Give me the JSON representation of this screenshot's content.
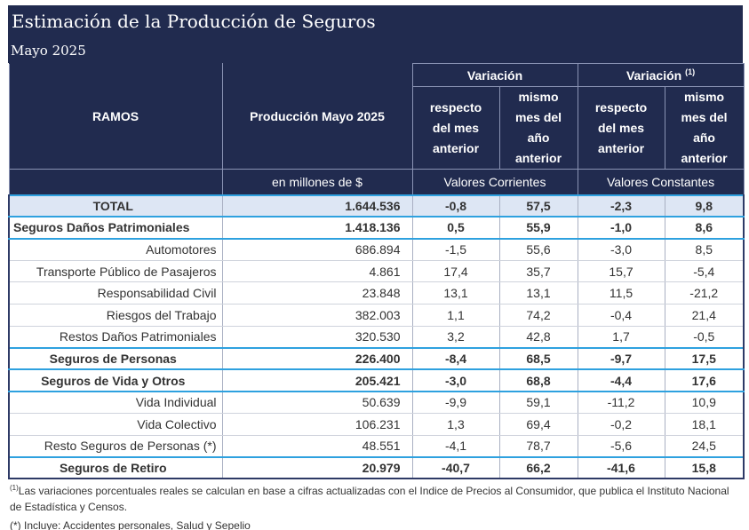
{
  "header": {
    "title": "Estimación de la Producción de Seguros",
    "subtitle": "Mayo 2025"
  },
  "columns": {
    "ramos": "RAMOS",
    "produccion": "Producción Mayo 2025",
    "variacion": "Variación",
    "variacion_real": "Variación",
    "variacion_real_mark": "(1)",
    "respecto": [
      "respecto",
      "del mes",
      "anterior"
    ],
    "mismo": [
      "mismo",
      "mes del",
      "año",
      "anterior"
    ],
    "unidad": "en millones de $",
    "corrientes": "Valores Corrientes",
    "constantes": "Valores Constantes"
  },
  "rows": [
    {
      "name": "TOTAL",
      "type": "total",
      "prod": "1.644.536",
      "r1": "-0,8",
      "r2": "57,5",
      "r3": "-2,3",
      "r4": "9,8"
    },
    {
      "name": "Seguros Daños Patrimoniales",
      "type": "group",
      "prod": "1.418.136",
      "r1": "0,5",
      "r2": "55,9",
      "r3": "-1,0",
      "r4": "8,6"
    },
    {
      "name": "Automotores",
      "type": "sub",
      "prod": "686.894",
      "r1": "-1,5",
      "r2": "55,6",
      "r3": "-3,0",
      "r4": "8,5"
    },
    {
      "name": "Transporte Público de Pasajeros",
      "type": "sub",
      "prod": "4.861",
      "r1": "17,4",
      "r2": "35,7",
      "r3": "15,7",
      "r4": "-5,4"
    },
    {
      "name": "Responsabilidad Civil",
      "type": "sub",
      "prod": "23.848",
      "r1": "13,1",
      "r2": "13,1",
      "r3": "11,5",
      "r4": "-21,2"
    },
    {
      "name": "Riesgos del Trabajo",
      "type": "sub",
      "prod": "382.003",
      "r1": "1,1",
      "r2": "74,2",
      "r3": "-0,4",
      "r4": "21,4"
    },
    {
      "name": "Restos Daños Patrimoniales",
      "type": "sub",
      "prod": "320.530",
      "r1": "3,2",
      "r2": "42,8",
      "r3": "1,7",
      "r4": "-0,5"
    },
    {
      "name": "Seguros de Personas",
      "type": "group",
      "prod": "226.400",
      "r1": "-8,4",
      "r2": "68,5",
      "r3": "-9,7",
      "r4": "17,5"
    },
    {
      "name": "Seguros de Vida y Otros",
      "type": "group",
      "prod": "205.421",
      "r1": "-3,0",
      "r2": "68,8",
      "r3": "-4,4",
      "r4": "17,6"
    },
    {
      "name": "Vida Individual",
      "type": "sub",
      "prod": "50.639",
      "r1": "-9,9",
      "r2": "59,1",
      "r3": "-11,2",
      "r4": "10,9"
    },
    {
      "name": "Vida Colectivo",
      "type": "sub",
      "prod": "106.231",
      "r1": "1,3",
      "r2": "69,4",
      "r3": "-0,2",
      "r4": "18,1"
    },
    {
      "name": "Resto Seguros de Personas (*)",
      "type": "sub",
      "prod": "48.551",
      "r1": "-4,1",
      "r2": "78,7",
      "r3": "-5,6",
      "r4": "24,5"
    },
    {
      "name": "Seguros de Retiro",
      "type": "group",
      "prod": "20.979",
      "r1": "-40,7",
      "r2": "66,2",
      "r3": "-41,6",
      "r4": "15,8"
    }
  ],
  "notes": {
    "mark": "(1)",
    "note1": "Las variaciones porcentuales reales se calculan en base a cifras actualizadas con  el Indice de Precios al Consumidor, que publica el Instituto Nacional de Estadística y  Censos.",
    "note2": "(*) Incluye: Accidentes personales, Salud y Sepelio"
  }
}
